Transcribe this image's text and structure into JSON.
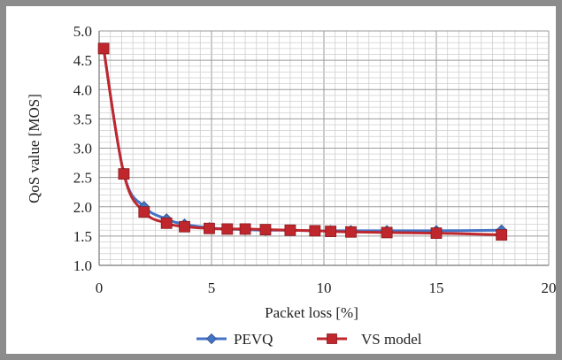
{
  "chart_data": {
    "type": "line",
    "title": "",
    "xlabel": "Packet loss [%]",
    "ylabel": "QoS value [MOS]",
    "xlim": [
      0,
      20
    ],
    "ylim": [
      1.0,
      5.0
    ],
    "xticks": [
      "0",
      "5",
      "10",
      "15",
      "20"
    ],
    "yticks": [
      "1.0",
      "1.5",
      "2.0",
      "2.5",
      "3.0",
      "3.5",
      "4.0",
      "4.5",
      "5.0"
    ],
    "grid": true,
    "legend_position": "bottom",
    "series": [
      {
        "name": "PEVQ",
        "color": "#4472c4",
        "marker": "diamond",
        "x": [
          0.2,
          1.1,
          2.0,
          3.0,
          3.8,
          4.9,
          5.7,
          6.5,
          7.4,
          8.5,
          9.6,
          10.3,
          11.2,
          12.8,
          15.0,
          17.9
        ],
        "y": [
          4.7,
          2.57,
          2.0,
          1.79,
          1.7,
          1.64,
          1.62,
          1.61,
          1.6,
          1.6,
          1.59,
          1.59,
          1.59,
          1.59,
          1.59,
          1.6
        ]
      },
      {
        "name": "VS model",
        "color": "#c0272d",
        "marker": "square",
        "x": [
          0.2,
          1.1,
          2.0,
          3.0,
          3.8,
          4.9,
          5.7,
          6.5,
          7.4,
          8.5,
          9.6,
          10.3,
          11.2,
          12.8,
          15.0,
          17.9
        ],
        "y": [
          4.7,
          2.56,
          1.91,
          1.72,
          1.66,
          1.63,
          1.62,
          1.62,
          1.61,
          1.6,
          1.59,
          1.58,
          1.57,
          1.56,
          1.55,
          1.52
        ]
      }
    ]
  }
}
